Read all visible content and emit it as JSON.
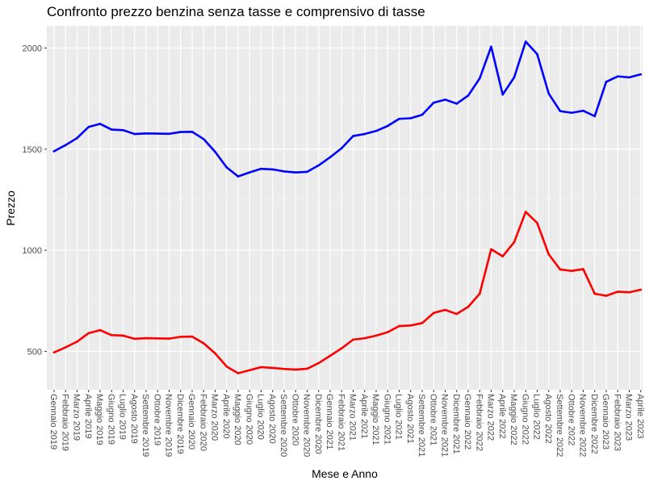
{
  "chart_data": {
    "type": "line",
    "title": "Confronto prezzo benzina senza tasse e comprensivo di tasse",
    "xlabel": "Mese e Anno",
    "ylabel": "Prezzo",
    "ylim": [
      310,
      2110
    ],
    "yticks": [
      500,
      1000,
      1500,
      2000
    ],
    "grid": true,
    "categories": [
      "Gennaio 2019",
      "Febbraio 2019",
      "Marzo 2019",
      "Aprile 2019",
      "Maggio 2019",
      "Giugno 2019",
      "Luglio 2019",
      "Agosto 2019",
      "Settembre 2019",
      "Ottobre 2019",
      "Novembre 2019",
      "Dicembre 2019",
      "Gennaio 2020",
      "Febbraio 2020",
      "Marzo 2020",
      "Aprile 2020",
      "Maggio 2020",
      "Giugno 2020",
      "Luglio 2020",
      "Agosto 2020",
      "Settembre 2020",
      "Ottobre 2020",
      "Novembre 2020",
      "Dicembre 2020",
      "Gennaio 2021",
      "Febbraio 2021",
      "Marzo 2021",
      "Aprile 2021",
      "Maggio 2021",
      "Giugno 2021",
      "Luglio 2021",
      "Agosto 2021",
      "Settembre 2021",
      "Ottobre 2021",
      "Novembre 2021",
      "Dicembre 2021",
      "Gennaio 2022",
      "Febbraio 2022",
      "Marzo 2022",
      "Aprile 2022",
      "Maggio 2022",
      "Giugno 2022",
      "Luglio 2022",
      "Agosto 2022",
      "Settembre 2022",
      "Ottobre 2022",
      "Novembre 2022",
      "Dicembre 2022",
      "Gennaio 2023",
      "Febbraio 2023",
      "Marzo 2023",
      "Aprile 2023"
    ],
    "series": [
      {
        "color": "#0000ff",
        "values": [
          1490,
          1520,
          1555,
          1610,
          1625,
          1597,
          1594,
          1575,
          1578,
          1577,
          1576,
          1585,
          1586,
          1550,
          1487,
          1410,
          1365,
          1385,
          1403,
          1400,
          1390,
          1385,
          1388,
          1420,
          1460,
          1505,
          1565,
          1575,
          1590,
          1615,
          1650,
          1653,
          1670,
          1730,
          1745,
          1725,
          1765,
          1850,
          2007,
          1770,
          1855,
          2032,
          1970,
          1775,
          1688,
          1680,
          1690,
          1663,
          1833,
          1860,
          1855,
          1870
        ]
      },
      {
        "color": "#ff0000",
        "values": [
          495,
          520,
          548,
          590,
          605,
          580,
          578,
          562,
          565,
          564,
          563,
          572,
          573,
          540,
          490,
          425,
          392,
          407,
          422,
          418,
          413,
          410,
          414,
          442,
          478,
          515,
          558,
          565,
          578,
          595,
          625,
          628,
          640,
          690,
          705,
          685,
          720,
          785,
          1005,
          970,
          1040,
          1190,
          1135,
          980,
          905,
          898,
          907,
          785,
          775,
          795,
          792,
          805
        ]
      }
    ]
  }
}
